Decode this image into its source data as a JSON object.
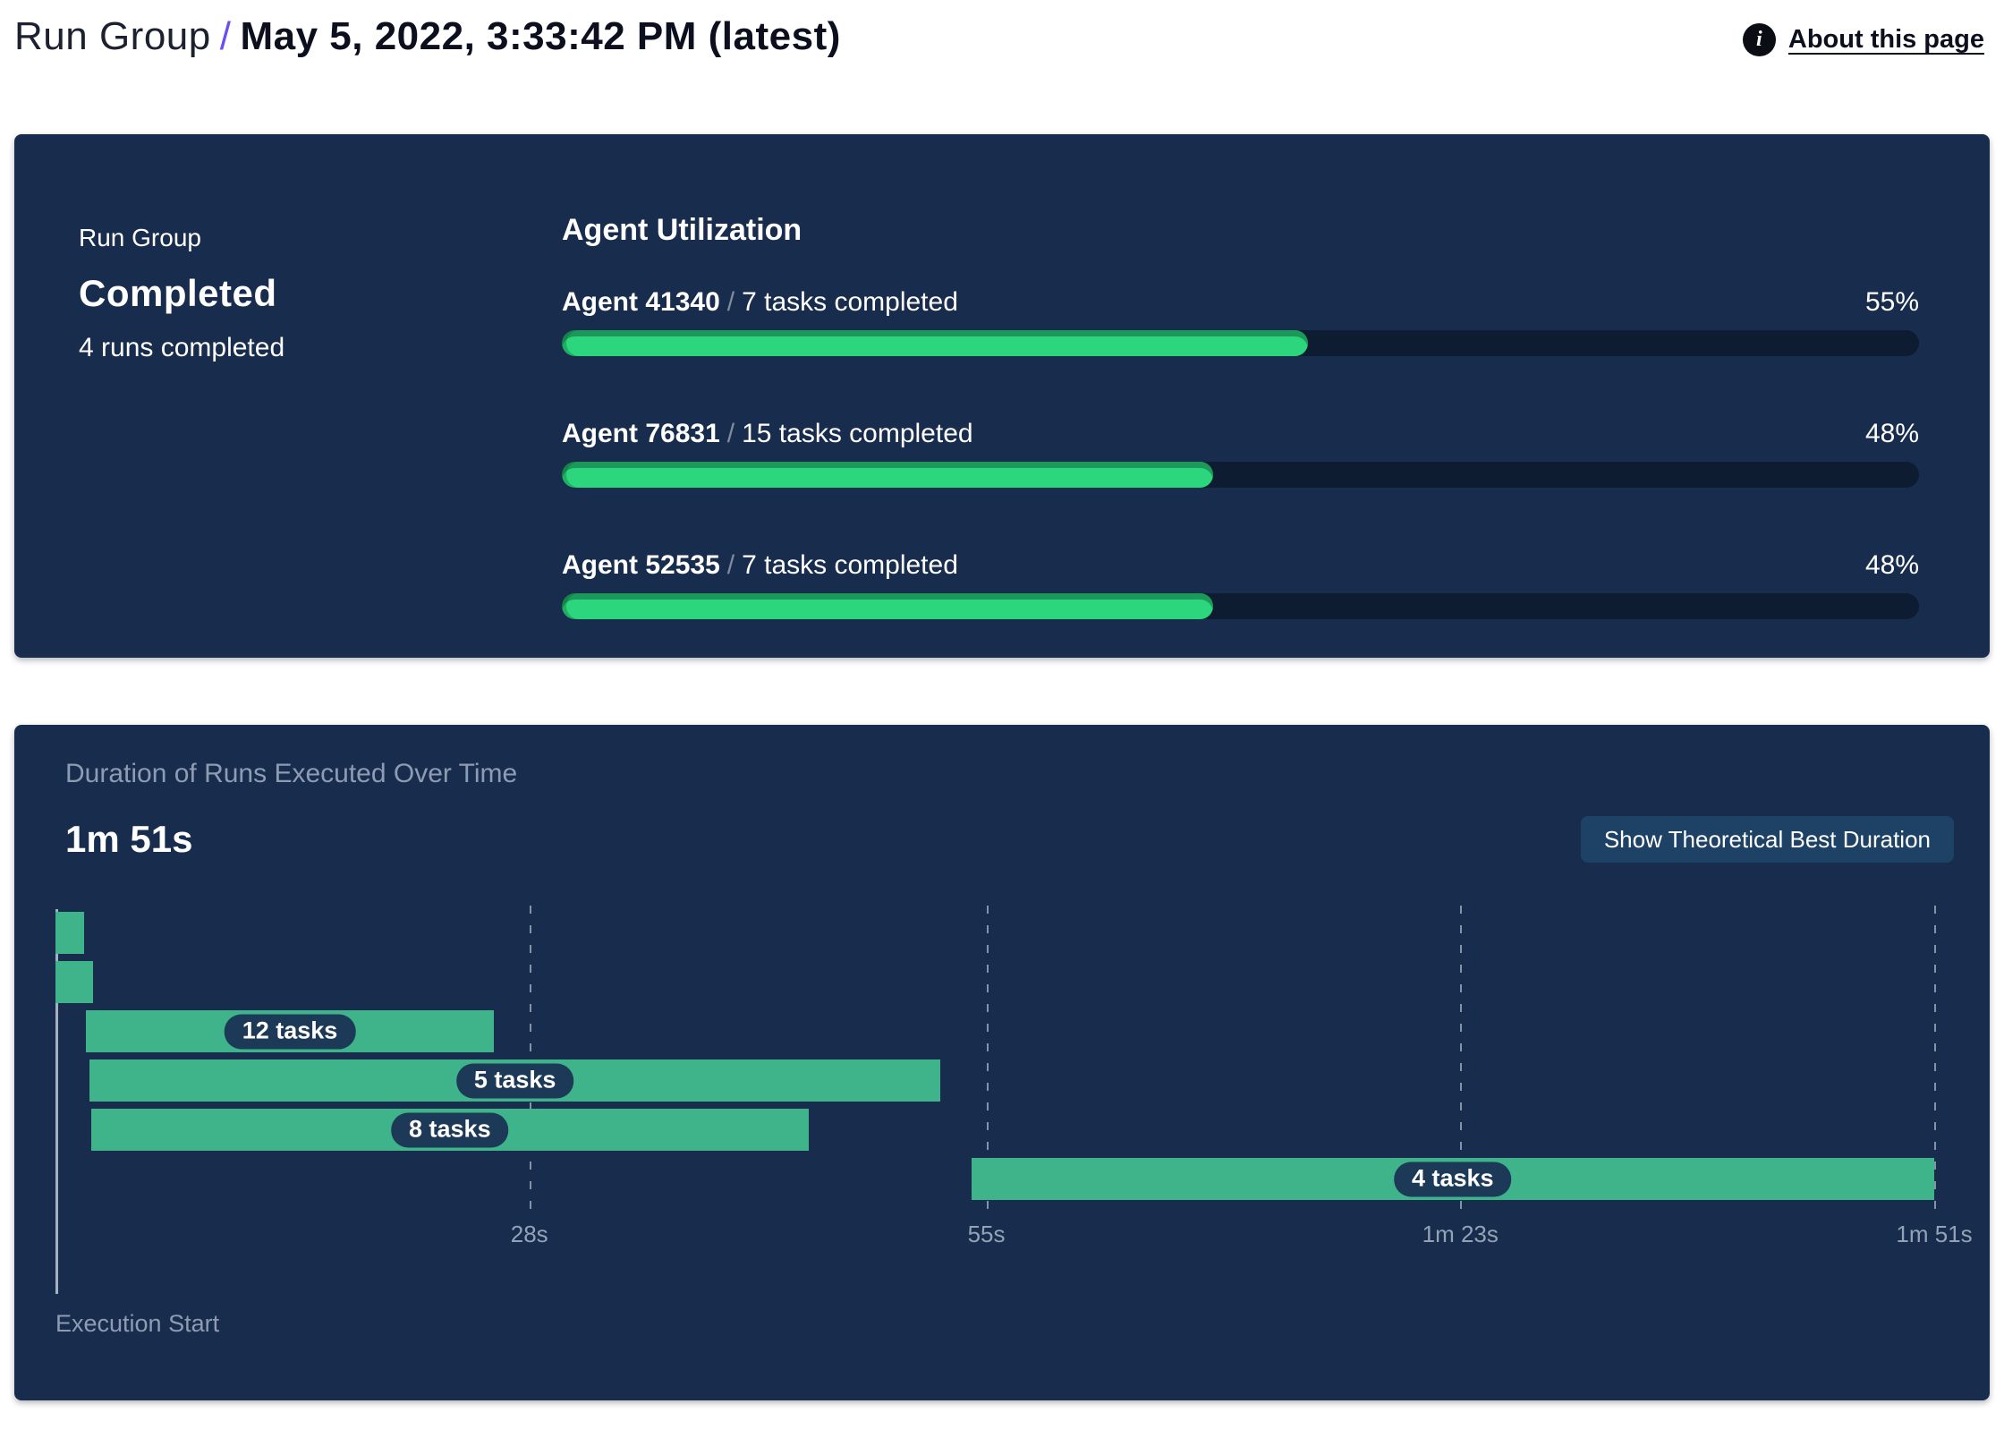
{
  "header": {
    "breadcrumb": "Run Group",
    "separator": "/",
    "title": "May 5, 2022, 3:33:42 PM (latest)",
    "about": {
      "label": "About this page",
      "icon_glyph": "i"
    }
  },
  "colors": {
    "panel_bg": "#182c4d",
    "progress_track": "#0d1c30",
    "progress_green": "#2bd67d",
    "gantt_green": "#3fb48a",
    "chip_bg": "#1c3a57",
    "button_bg": "#1d4266",
    "muted_text": "#8e9cb3",
    "accent_purple": "#6b4ef5"
  },
  "run_group_panel": {
    "eyebrow": "Run Group",
    "status": "Completed",
    "runs_completed": "4 runs completed",
    "section_title": "Agent Utilization",
    "agents": [
      {
        "name": "Agent 41340",
        "separator": "/",
        "tasks": "7 tasks completed",
        "percent_label": "55%",
        "percent": 55
      },
      {
        "name": "Agent 76831",
        "separator": "/",
        "tasks": "15 tasks completed",
        "percent_label": "48%",
        "percent": 48
      },
      {
        "name": "Agent 52535",
        "separator": "/",
        "tasks": "7 tasks completed",
        "percent_label": "48%",
        "percent": 48
      }
    ]
  },
  "duration_panel": {
    "title": "Duration of Runs Executed Over Time",
    "max_duration": "1m 51s",
    "button_label": "Show Theoretical Best Duration",
    "x_axis_label": "Execution Start"
  },
  "chart_data": {
    "type": "gantt",
    "title": "Duration of Runs Executed Over Time",
    "max_duration_label": "1m 51s",
    "x_axis_label": "Execution Start",
    "x_max_seconds": 111,
    "x_ticks": [
      {
        "label": "28s",
        "seconds": 28
      },
      {
        "label": "55s",
        "seconds": 55
      },
      {
        "label": "1m 23s",
        "seconds": 83
      },
      {
        "label": "1m 51s",
        "seconds": 111
      }
    ],
    "runs": [
      {
        "start_s": 0,
        "end_s": 1.7,
        "label": ""
      },
      {
        "start_s": 0,
        "end_s": 2.2,
        "label": ""
      },
      {
        "start_s": 1.8,
        "end_s": 25.9,
        "label": "12 tasks"
      },
      {
        "start_s": 2.0,
        "end_s": 52.3,
        "label": "5 tasks"
      },
      {
        "start_s": 2.1,
        "end_s": 44.5,
        "label": "8 tasks"
      },
      {
        "start_s": 54.1,
        "end_s": 111,
        "label": "4 tasks"
      }
    ]
  }
}
